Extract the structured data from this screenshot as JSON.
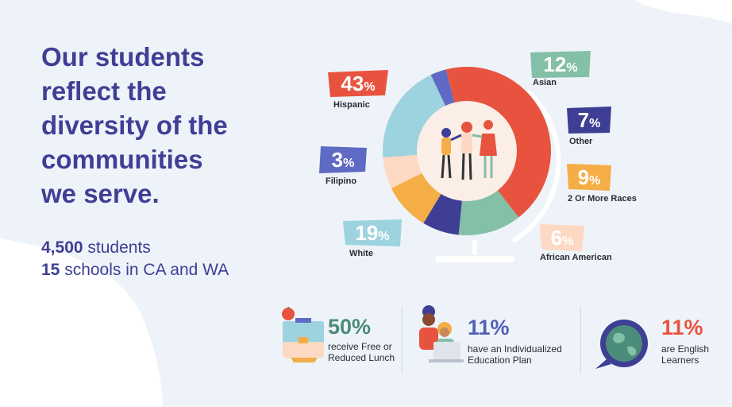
{
  "headline": [
    "Our students",
    "reflect the",
    "diversity of the",
    "communities",
    "we serve."
  ],
  "stats": [
    {
      "bold": "4,500",
      "rest": " students"
    },
    {
      "bold": "15",
      "rest": " schools in CA and WA"
    }
  ],
  "chart_data": {
    "type": "pie",
    "style": "donut",
    "categories": [
      "Hispanic",
      "Asian",
      "Other",
      "2 Or More Races",
      "African American",
      "White",
      "Filipino"
    ],
    "values": [
      43,
      12,
      7,
      9,
      6,
      19,
      3
    ],
    "value_labels": [
      "43",
      "12",
      "7",
      "9",
      "6",
      "19",
      "3"
    ],
    "unit": "%",
    "colors": [
      "#e8533f",
      "#84bfa7",
      "#3e3f94",
      "#f5ad45",
      "#fdd9c3",
      "#9dd3df",
      "#5f6ac4"
    ]
  },
  "highlights": [
    {
      "value": "50%",
      "line1": "receive Free or",
      "line2": "Reduced Lunch",
      "color": "#4b8c7a",
      "icon": "lunchbox-icon"
    },
    {
      "value": "11%",
      "line1": "have an Individualized",
      "line2": "Education Plan",
      "color": "#5061b8",
      "icon": "students-laptop-icon"
    },
    {
      "value": "11%",
      "line1": "are English",
      "line2": "Learners",
      "color": "#e8533f",
      "icon": "globe-speech-icon"
    }
  ]
}
